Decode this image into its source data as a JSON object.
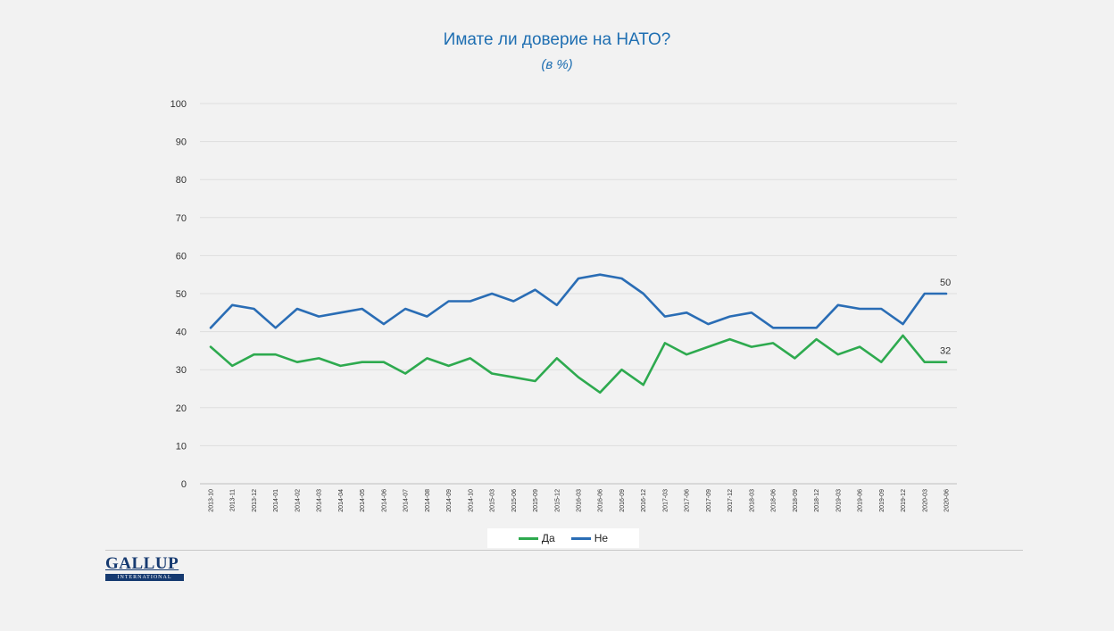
{
  "chart_data": {
    "type": "line",
    "title": "Имате ли доверие на НАТО?",
    "subtitle": "(в %)",
    "ylim": [
      0,
      100
    ],
    "yticks": [
      "0",
      "10",
      "20",
      "30",
      "40",
      "50",
      "60",
      "70",
      "80",
      "90",
      "100"
    ],
    "grid": true,
    "legend_placement": "bottom",
    "x": [
      "2013-10",
      "2013-11",
      "2013-12",
      "2014-01",
      "2014-02",
      "2014-03",
      "2014-04",
      "2014-05",
      "2014-06",
      "2014-07",
      "2014-08",
      "2014-09",
      "2014-10",
      "2015-03",
      "2015-06",
      "2015-09",
      "2015-12",
      "2016-03",
      "2016-06",
      "2016-09",
      "2016-12",
      "2017-03",
      "2017-06",
      "2017-09",
      "2017-12",
      "2018-03",
      "2018-06",
      "2018-09",
      "2018-12",
      "2019-03",
      "2019-06",
      "2019-09",
      "2019-12",
      "2020-03",
      "2020-06"
    ],
    "series": [
      {
        "name": "Да",
        "color": "#2eaa4f",
        "values": [
          36,
          31,
          34,
          34,
          32,
          33,
          31,
          32,
          32,
          29,
          33,
          31,
          33,
          29,
          28,
          27,
          33,
          28,
          24,
          30,
          26,
          37,
          34,
          36,
          38,
          36,
          37,
          33,
          38,
          34,
          36,
          32,
          39,
          32,
          32
        ],
        "end_label": "32"
      },
      {
        "name": "Не",
        "color": "#2a6db5",
        "values": [
          41,
          47,
          46,
          41,
          46,
          44,
          45,
          46,
          42,
          46,
          44,
          48,
          48,
          50,
          48,
          51,
          47,
          54,
          55,
          54,
          50,
          44,
          45,
          42,
          44,
          45,
          41,
          41,
          41,
          47,
          46,
          46,
          42,
          50,
          50
        ],
        "end_label": "50"
      }
    ]
  },
  "logo": {
    "main": "GALLUP",
    "sub": "INTERNATIONAL"
  }
}
